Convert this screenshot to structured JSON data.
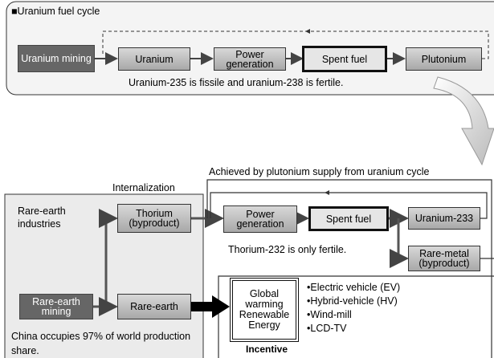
{
  "uranium_cycle": {
    "title": "■Uranium fuel cycle",
    "boxes": [
      "Uranium mining",
      "Uranium",
      "Power generation",
      "Spent fuel",
      "Plutonium"
    ],
    "caption": "Uranium-235 is fissile and uranium-238 is fertile."
  },
  "thorium_cycle": {
    "feedback_note": "Achieved by plutonium supply from uranium cycle",
    "internalization": "Internalization",
    "industry_label": "Rare-earth industries",
    "boxes": {
      "thorium": "Thorium (byproduct)",
      "rare_earth_mining": "Rare-earth mining",
      "rare_earth": "Rare-earth",
      "power_generation": "Power generation",
      "spent_fuel": "Spent fuel",
      "uranium_233": "Uranium-233",
      "rare_metal": "Rare-metal (byproduct)"
    },
    "caption": "Thorium-232 is only fertile.",
    "china_note": "China occupies 97% of world production share.",
    "incentive_box": "Global warming Renewable Energy",
    "incentive_label": "Incentive",
    "applications": [
      "•Electric vehicle (EV)",
      "•Hybrid-vehicle (HV)",
      "•Wind-mill",
      "•LCD-TV"
    ]
  }
}
